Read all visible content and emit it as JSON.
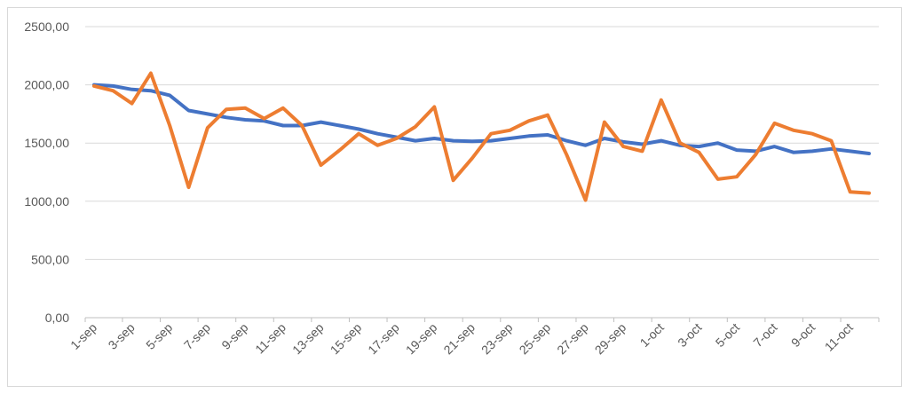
{
  "chart_data": {
    "type": "line",
    "title": "",
    "xlabel": "",
    "ylabel": "",
    "ylim": [
      0,
      2500
    ],
    "y_ticks": [
      "0,00",
      "500,00",
      "1000,00",
      "1500,00",
      "2000,00",
      "2500,00"
    ],
    "grid": "horizontal",
    "legend": "none",
    "categories": [
      "1-sep",
      "2-sep",
      "3-sep",
      "4-sep",
      "5-sep",
      "6-sep",
      "7-sep",
      "8-sep",
      "9-sep",
      "10-sep",
      "11-sep",
      "12-sep",
      "13-sep",
      "14-sep",
      "15-sep",
      "16-sep",
      "17-sep",
      "18-sep",
      "19-sep",
      "20-sep",
      "21-sep",
      "22-sep",
      "23-sep",
      "24-sep",
      "25-sep",
      "26-sep",
      "27-sep",
      "28-sep",
      "29-sep",
      "30-sep",
      "1-oct",
      "2-oct",
      "3-oct",
      "4-oct",
      "5-oct",
      "6-oct",
      "7-oct",
      "8-oct",
      "9-oct",
      "10-oct",
      "11-oct",
      "12-oct"
    ],
    "x_tick_labels": [
      "1-sep",
      "3-sep",
      "5-sep",
      "7-sep",
      "9-sep",
      "11-sep",
      "13-sep",
      "15-sep",
      "17-sep",
      "19-sep",
      "21-sep",
      "23-sep",
      "25-sep",
      "27-sep",
      "29-sep",
      "1-oct",
      "3-oct",
      "5-oct",
      "7-oct",
      "9-oct",
      "11-oct"
    ],
    "series": [
      {
        "color": "#4472c4",
        "values": [
          2000,
          1990,
          1960,
          1950,
          1910,
          1780,
          1750,
          1720,
          1700,
          1690,
          1650,
          1650,
          1680,
          1650,
          1620,
          1580,
          1550,
          1520,
          1540,
          1520,
          1515,
          1520,
          1540,
          1560,
          1570,
          1520,
          1480,
          1540,
          1510,
          1490,
          1520,
          1480,
          1470,
          1500,
          1440,
          1430,
          1470,
          1420,
          1430,
          1450,
          1430,
          1410
        ]
      },
      {
        "color": "#ed7d31",
        "values": [
          1990,
          1950,
          1840,
          2100,
          1650,
          1120,
          1630,
          1790,
          1800,
          1710,
          1800,
          1650,
          1310,
          1440,
          1580,
          1480,
          1540,
          1640,
          1810,
          1180,
          1370,
          1580,
          1610,
          1690,
          1740,
          1400,
          1010,
          1680,
          1470,
          1430,
          1870,
          1500,
          1420,
          1190,
          1210,
          1400,
          1670,
          1610,
          1580,
          1520,
          1080,
          1070
        ]
      }
    ]
  }
}
